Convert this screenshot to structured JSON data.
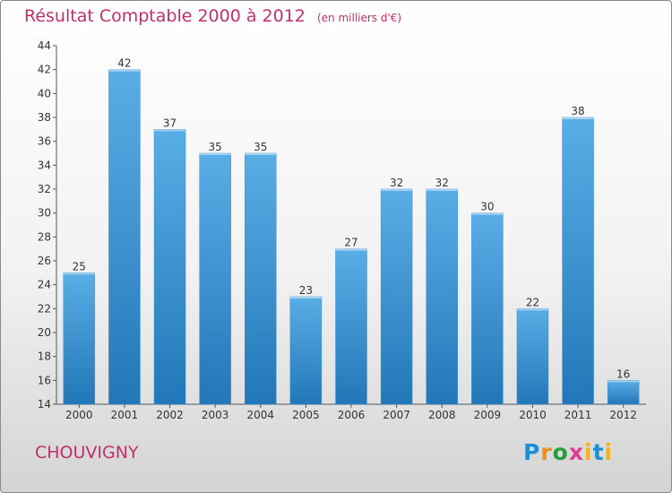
{
  "chart_data": {
    "type": "bar",
    "title": "Résultat Comptable 2000 à 2012",
    "unit": "(en milliers d'€)",
    "categories": [
      "2000",
      "2001",
      "2002",
      "2003",
      "2004",
      "2005",
      "2006",
      "2007",
      "2008",
      "2009",
      "2010",
      "2011",
      "2012"
    ],
    "values": [
      25,
      42,
      37,
      35,
      35,
      23,
      27,
      32,
      32,
      30,
      22,
      38,
      16
    ],
    "ylim": [
      14,
      44
    ],
    "yticks": [
      14,
      16,
      18,
      20,
      22,
      24,
      26,
      28,
      30,
      32,
      34,
      36,
      38,
      40,
      42,
      44
    ],
    "grid": false,
    "bar_color_top": "#5aaee6",
    "bar_color_bottom": "#2277b8"
  },
  "location": "CHOUVIGNY",
  "brand": {
    "p": "P",
    "r": "r",
    "o": "o",
    "x": "x",
    "i": "i",
    "t": "t",
    "i2": "i"
  },
  "colors": {
    "accent": "#c0306a"
  }
}
